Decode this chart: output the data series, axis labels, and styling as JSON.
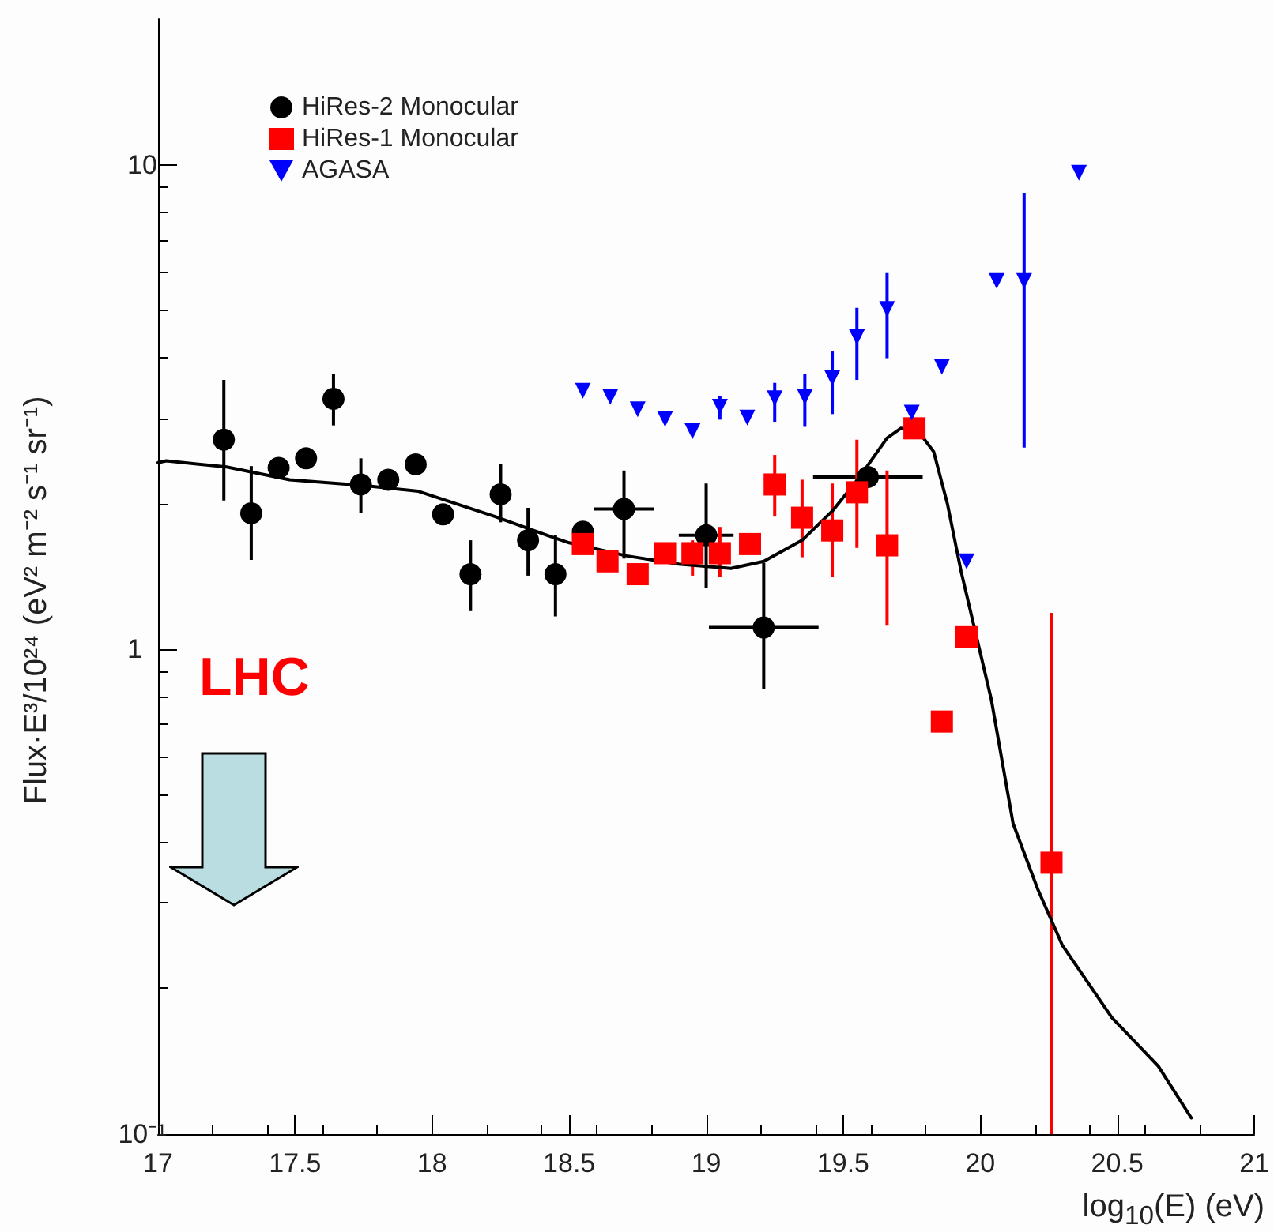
{
  "chart_data": {
    "type": "scatter",
    "xlabel": "log$_{10}$(E) (eV)",
    "ylabel": "Flux·E³/10²⁴ (eV² m⁻² s⁻¹ sr⁻¹)",
    "xlim": [
      17,
      21
    ],
    "xticks": [
      17,
      17.5,
      18,
      18.5,
      19,
      19.5,
      20,
      20.5,
      21
    ],
    "ylim": [
      0.1,
      20
    ],
    "yticks": [
      {
        "value": 0.1,
        "label": "10⁻¹"
      },
      1,
      10
    ],
    "log": "y",
    "grid": false,
    "legend": "top left",
    "annotations": [
      "LHC"
    ],
    "series": [
      {
        "name": "HiRes-2 Monocular",
        "color": "#000000",
        "marker": "circle",
        "x": [
          17.24,
          17.34,
          17.44,
          17.54,
          17.64,
          17.74,
          17.84,
          17.94,
          18.04,
          18.14,
          18.25,
          18.35,
          18.45,
          18.55,
          18.7,
          19.0,
          19.21,
          19.59
        ],
        "values": [
          2.71,
          1.91,
          2.37,
          2.48,
          3.29,
          2.19,
          2.24,
          2.41,
          1.9,
          1.43,
          2.09,
          1.68,
          1.43,
          1.75,
          1.95,
          1.72,
          1.11,
          2.27
        ],
        "errors": [
          [
            2.03,
            3.6
          ],
          [
            1.53,
            2.39
          ],
          null,
          null,
          [
            2.9,
            3.71
          ],
          [
            1.91,
            2.48
          ],
          null,
          null,
          null,
          [
            1.2,
            1.68
          ],
          [
            1.83,
            2.41
          ],
          [
            1.42,
            1.96
          ],
          [
            1.17,
            1.72
          ],
          null,
          [
            1.54,
            2.34
          ],
          [
            1.34,
            2.2
          ],
          [
            0.83,
            1.51
          ],
          null
        ],
        "xerrors": [
          null,
          null,
          null,
          null,
          null,
          null,
          null,
          null,
          null,
          null,
          null,
          null,
          null,
          null,
          0.11,
          0.1,
          0.2,
          0.2
        ]
      },
      {
        "name": "HiRes-1 Monocular",
        "color": "#ff0000",
        "marker": "square",
        "x": [
          18.55,
          18.64,
          18.75,
          18.85,
          18.95,
          19.05,
          19.16,
          19.25,
          19.35,
          19.46,
          19.55,
          19.66,
          19.76,
          19.86,
          19.95,
          20.26
        ],
        "values": [
          1.65,
          1.52,
          1.43,
          1.58,
          1.58,
          1.58,
          1.65,
          2.19,
          1.87,
          1.76,
          2.11,
          1.64,
          2.86,
          0.71,
          1.06,
          0.363
        ],
        "errors": [
          null,
          null,
          null,
          null,
          [
            1.42,
            1.68
          ],
          [
            1.41,
            1.79
          ],
          null,
          [
            1.88,
            2.52
          ],
          [
            1.55,
            2.24
          ],
          [
            1.41,
            2.2
          ],
          [
            1.62,
            2.71
          ],
          [
            1.12,
            2.34
          ],
          null,
          null,
          null,
          [
            0.1,
            1.19
          ]
        ]
      },
      {
        "name": "AGASA",
        "color": "#0000ff",
        "marker": "triangle",
        "x": [
          18.55,
          18.65,
          18.75,
          18.85,
          18.95,
          19.05,
          19.15,
          19.25,
          19.36,
          19.46,
          19.55,
          19.66,
          19.75,
          19.86,
          19.95,
          20.06,
          20.16,
          20.36
        ],
        "values": [
          3.42,
          3.32,
          3.13,
          2.99,
          2.82,
          3.17,
          3.01,
          3.3,
          3.32,
          3.63,
          4.41,
          5.04,
          3.08,
          3.83,
          1.52,
          5.76,
          5.76,
          9.63
        ],
        "errors": [
          null,
          null,
          null,
          null,
          null,
          [
            2.98,
            3.33
          ],
          null,
          [
            2.95,
            3.55
          ],
          [
            2.88,
            3.71
          ],
          [
            3.06,
            4.12
          ],
          [
            3.6,
            5.07
          ],
          [
            3.99,
            5.98
          ],
          null,
          null,
          null,
          null,
          [
            2.61,
            8.74
          ],
          null
        ]
      },
      {
        "type": "line",
        "color": "#000000",
        "marker": "none",
        "x": [
          17.0,
          17.03,
          17.25,
          17.48,
          17.75,
          17.95,
          18.23,
          18.42,
          18.5,
          18.71,
          18.9,
          19.09,
          19.21,
          19.35,
          19.46,
          19.56,
          19.66,
          19.71,
          19.77,
          19.83,
          19.88,
          19.93,
          19.98,
          20.04,
          20.12,
          20.21,
          20.3,
          20.48,
          20.65,
          20.77
        ],
        "values": [
          2.43,
          2.45,
          2.38,
          2.24,
          2.18,
          2.12,
          1.88,
          1.72,
          1.66,
          1.56,
          1.5,
          1.47,
          1.52,
          1.68,
          1.93,
          2.27,
          2.73,
          2.86,
          2.84,
          2.56,
          2.0,
          1.45,
          1.1,
          0.79,
          0.437,
          0.32,
          0.245,
          0.174,
          0.138,
          0.108
        ]
      }
    ]
  }
}
